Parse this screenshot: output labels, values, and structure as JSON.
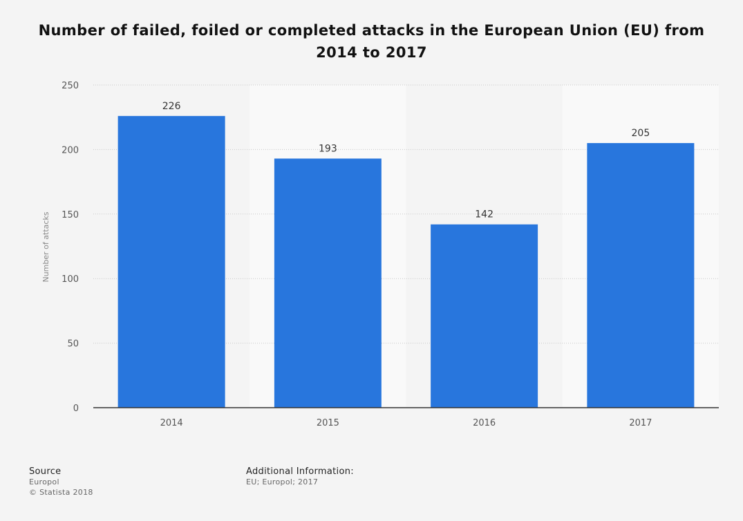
{
  "chart_data": {
    "type": "bar",
    "title": "Number of failed, foiled or completed attacks in the European Union (EU) from 2014 to 2017",
    "categories": [
      "2014",
      "2015",
      "2016",
      "2017"
    ],
    "values": [
      226,
      193,
      142,
      205
    ],
    "xlabel": "",
    "ylabel": "Number of attacks",
    "ylim": [
      0,
      250
    ],
    "yticks": [
      0,
      50,
      100,
      150,
      200,
      250
    ],
    "data_labels": [
      "226",
      "193",
      "142",
      "205"
    ],
    "grid": true,
    "legend": "none",
    "bar_color": "#2876dd"
  },
  "footer": {
    "source_heading": "Source",
    "source_name": "Europol",
    "copyright": "© Statista 2018",
    "additional_heading": "Additional Information:",
    "additional_text": "EU; Europol; 2017"
  }
}
